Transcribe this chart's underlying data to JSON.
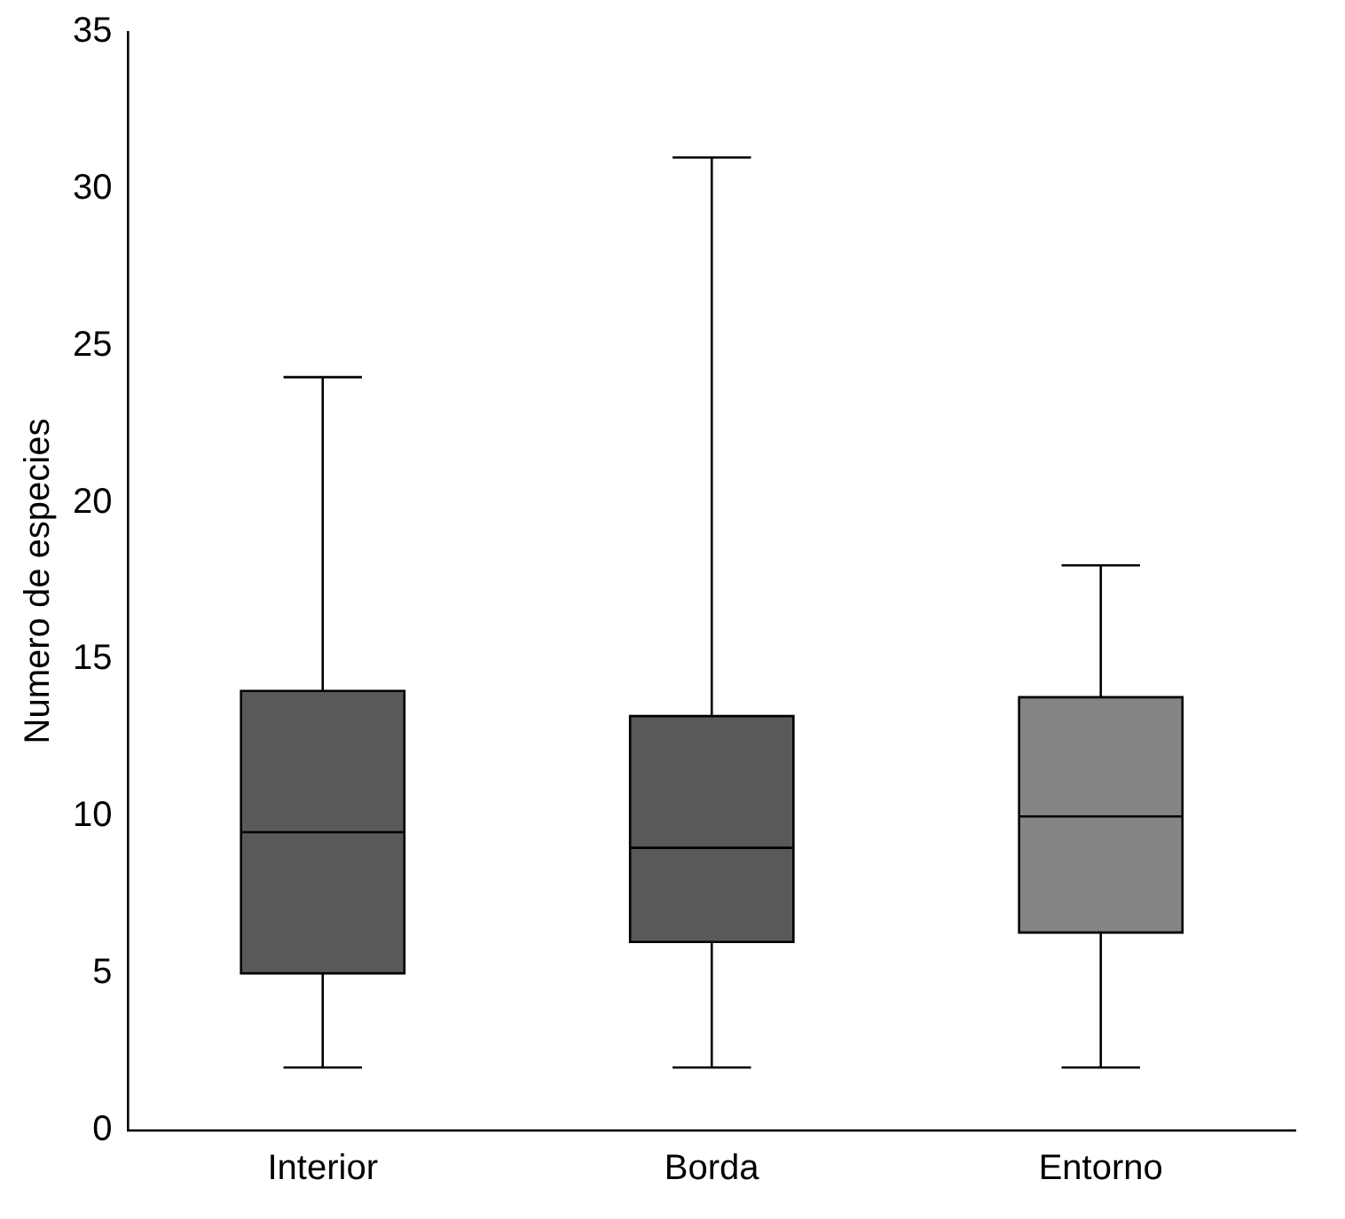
{
  "chart_data": {
    "type": "box",
    "ylabel": "Numero de especies",
    "categories": [
      "Interior",
      "Borda",
      "Entorno"
    ],
    "boxes": [
      {
        "low": 2,
        "q1": 5,
        "median": 9.5,
        "q3": 14,
        "high": 24
      },
      {
        "low": 2,
        "q1": 6,
        "median": 9,
        "q3": 13.2,
        "high": 31
      },
      {
        "low": 2,
        "q1": 6.3,
        "median": 10,
        "q3": 13.8,
        "high": 18
      }
    ],
    "colors": [
      "#595959",
      "#595959",
      "#858585"
    ],
    "ylim": [
      0,
      35
    ],
    "yticks": [
      0,
      5,
      10,
      15,
      20,
      25,
      30,
      35
    ]
  }
}
